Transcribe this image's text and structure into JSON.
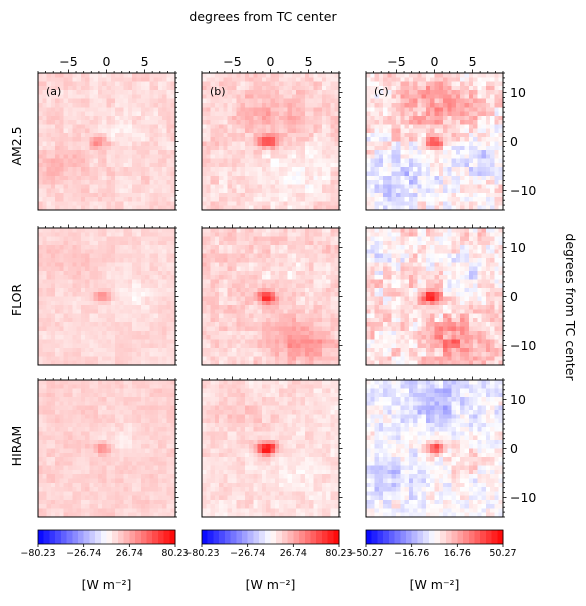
{
  "figure": {
    "top_label": "degrees from TC center",
    "right_label": "degrees from TC center",
    "colors": {
      "negative_extreme": "#0000ff",
      "neutral": "#ffffff",
      "positive_extreme": "#ff0000",
      "frame": "#000000"
    }
  },
  "chart_data": {
    "type": "heatmap",
    "grid": "off",
    "x_axis": {
      "range": [
        -9,
        9
      ],
      "ticks": [
        -5,
        0,
        5
      ],
      "tick_labels": [
        "−5",
        "0",
        "5"
      ],
      "position": "top, first row only"
    },
    "y_axis": {
      "range": [
        -14,
        14
      ],
      "ticks": [
        10,
        0,
        -10
      ],
      "tick_labels": [
        "10",
        "0",
        "−10"
      ],
      "position": "right, last column only"
    },
    "rows": [
      "AM2.5",
      "FLOR",
      "HIRAM"
    ],
    "columns": [
      {
        "panel_label": "(a)",
        "colorbar": {
          "range": [
            -80.23,
            80.23
          ],
          "tick_labels": [
            "−80.23",
            "−26.74",
            "26.74",
            "80.23"
          ],
          "unit_label": "[W m⁻²]"
        }
      },
      {
        "panel_label": "(b)",
        "colorbar": {
          "range": [
            -80.23,
            80.23
          ],
          "tick_labels": [
            "−80.23",
            "−26.74",
            "26.74",
            "80.23"
          ],
          "unit_label": "[W m⁻²]"
        }
      },
      {
        "panel_label": "(c)",
        "colorbar": {
          "range": [
            -50.27,
            50.27
          ],
          "tick_labels": [
            "−50.27",
            "−16.76",
            "16.76",
            "50.27"
          ],
          "unit_label": "[W m⁻²]"
        }
      }
    ],
    "panels": [
      {
        "row": 0,
        "col": 0,
        "vmax": 80.23,
        "base": 12,
        "spread": 8,
        "peaks": [
          {
            "x": -1,
            "y": 0,
            "v": 38
          }
        ],
        "blobs": [
          {
            "x": 2.5,
            "y": 1,
            "r": 3,
            "v": -6
          },
          {
            "x": -6,
            "y": -5,
            "r": 4,
            "v": 10
          }
        ]
      },
      {
        "row": 0,
        "col": 1,
        "vmax": 80.23,
        "base": 12,
        "spread": 10,
        "peaks": [
          {
            "x": -0.5,
            "y": 0,
            "v": 60
          }
        ],
        "blobs": [
          {
            "x": 0,
            "y": 6,
            "r": 5,
            "v": 14
          },
          {
            "x": 3,
            "y": -7,
            "r": 5,
            "v": -9
          }
        ]
      },
      {
        "row": 0,
        "col": 2,
        "vmax": 50.27,
        "base": 4,
        "spread": 12,
        "peaks": [
          {
            "x": 0,
            "y": 0,
            "v": 30
          }
        ],
        "blobs": [
          {
            "x": 0,
            "y": 8,
            "r": 6,
            "v": 14
          },
          {
            "x": -5,
            "y": -8,
            "r": 5,
            "v": -14
          },
          {
            "x": 6,
            "y": -4,
            "r": 4,
            "v": -10
          }
        ]
      },
      {
        "row": 1,
        "col": 0,
        "vmax": 80.23,
        "base": 12,
        "spread": 6,
        "peaks": [
          {
            "x": -0.5,
            "y": 0,
            "v": 42
          }
        ],
        "blobs": [
          {
            "x": 3,
            "y": 0,
            "r": 3,
            "v": -8
          },
          {
            "x": -5,
            "y": 8,
            "r": 4,
            "v": 6
          }
        ]
      },
      {
        "row": 1,
        "col": 1,
        "vmax": 80.23,
        "base": 14,
        "spread": 10,
        "peaks": [
          {
            "x": -0.5,
            "y": 0,
            "v": 70
          }
        ],
        "blobs": [
          {
            "x": 4,
            "y": -9,
            "r": 4,
            "v": 20
          },
          {
            "x": 3,
            "y": 5,
            "r": 4,
            "v": -6
          }
        ]
      },
      {
        "row": 1,
        "col": 2,
        "vmax": 50.27,
        "base": 6,
        "spread": 12,
        "peaks": [
          {
            "x": -0.5,
            "y": 0,
            "v": 42
          }
        ],
        "blobs": [
          {
            "x": 3,
            "y": -9,
            "r": 4,
            "v": 18
          },
          {
            "x": 5,
            "y": 6,
            "r": 4,
            "v": -10
          },
          {
            "x": -7,
            "y": 8,
            "r": 3,
            "v": -8
          }
        ]
      },
      {
        "row": 2,
        "col": 0,
        "vmax": 80.23,
        "base": 14,
        "spread": 6,
        "peaks": [
          {
            "x": -0.5,
            "y": 0,
            "v": 40
          }
        ],
        "blobs": [
          {
            "x": 2,
            "y": 1,
            "r": 3,
            "v": -8
          }
        ]
      },
      {
        "row": 2,
        "col": 1,
        "vmax": 80.23,
        "base": 10,
        "spread": 8,
        "peaks": [
          {
            "x": -0.5,
            "y": 0,
            "v": 80
          }
        ],
        "blobs": [
          {
            "x": -4,
            "y": 7,
            "r": 4,
            "v": 8
          },
          {
            "x": 4,
            "y": -5,
            "r": 4,
            "v": -4
          }
        ]
      },
      {
        "row": 2,
        "col": 2,
        "vmax": 50.27,
        "base": 0,
        "spread": 10,
        "peaks": [
          {
            "x": 0,
            "y": 0,
            "v": 40
          }
        ],
        "blobs": [
          {
            "x": 0,
            "y": 10,
            "r": 5,
            "v": -14
          },
          {
            "x": -6,
            "y": -6,
            "r": 4,
            "v": -10
          },
          {
            "x": 5,
            "y": -2,
            "r": 4,
            "v": 6
          }
        ]
      }
    ]
  }
}
